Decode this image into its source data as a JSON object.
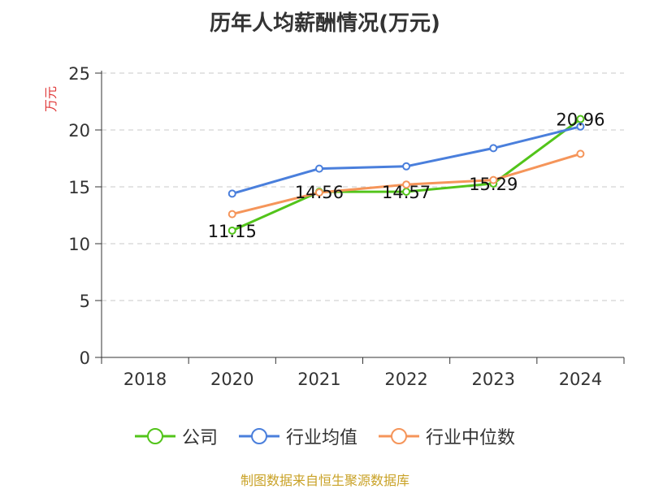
{
  "chart_data": {
    "type": "line",
    "title": "历年人均薪酬情况(万元)",
    "ylabel": "万元",
    "xlabel": "",
    "categories": [
      "2018",
      "2020",
      "2021",
      "2022",
      "2023",
      "2024"
    ],
    "ylim": [
      0,
      25
    ],
    "yticks": [
      0,
      5,
      10,
      15,
      20,
      25
    ],
    "grid": true,
    "legend_position": "bottom",
    "series": [
      {
        "name": "公司",
        "color": "#52c41a",
        "values": [
          null,
          11.15,
          14.56,
          14.57,
          15.29,
          20.96
        ],
        "labels": [
          null,
          "11.15",
          "14.56",
          "14.57",
          "15.29",
          "20.96"
        ]
      },
      {
        "name": "行业均值",
        "color": "#4a7fdc",
        "values": [
          null,
          14.4,
          16.6,
          16.8,
          18.4,
          20.3
        ],
        "labels": [
          null,
          null,
          null,
          null,
          null,
          null
        ]
      },
      {
        "name": "行业中位数",
        "color": "#f5955a",
        "values": [
          null,
          12.6,
          14.5,
          15.2,
          15.6,
          17.9
        ],
        "labels": [
          null,
          null,
          null,
          null,
          null,
          null
        ]
      }
    ]
  },
  "source_note": "制图数据来自恒生聚源数据库"
}
